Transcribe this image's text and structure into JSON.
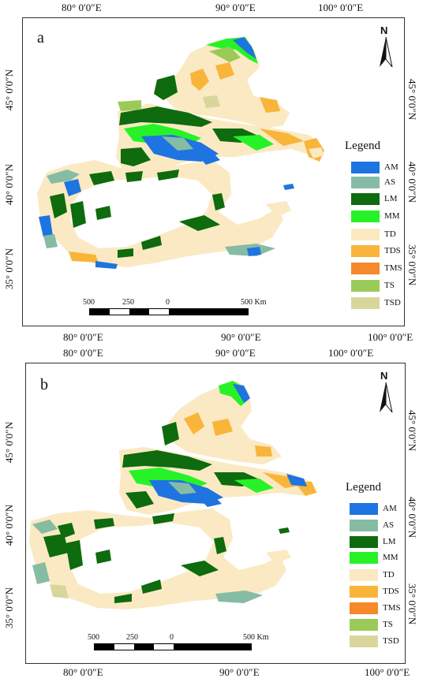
{
  "panels": [
    {
      "label": "a"
    },
    {
      "label": "b"
    }
  ],
  "coords": {
    "lon": [
      "80° 0′0″E",
      "90° 0′0″E",
      "100° 0′0″E"
    ],
    "lat": [
      "45° 0′0″N",
      "40° 0′0″N",
      "35° 0′0″N"
    ]
  },
  "north": "N",
  "legend": {
    "title": "Legend",
    "items": [
      {
        "code": "AM",
        "color": "#1e74e0"
      },
      {
        "code": "AS",
        "color": "#86bca4"
      },
      {
        "code": "LM",
        "color": "#0e6b0e"
      },
      {
        "code": "MM",
        "color": "#27f227"
      },
      {
        "code": "TD",
        "color": "#fae9c2"
      },
      {
        "code": "TDS",
        "color": "#f9b43a"
      },
      {
        "code": "TMS",
        "color": "#f5892b"
      },
      {
        "code": "TS",
        "color": "#9acb58"
      },
      {
        "code": "TSD",
        "color": "#d9d69b"
      }
    ]
  },
  "scale": {
    "labels": [
      "500",
      "250",
      "0",
      "500 Km"
    ]
  }
}
